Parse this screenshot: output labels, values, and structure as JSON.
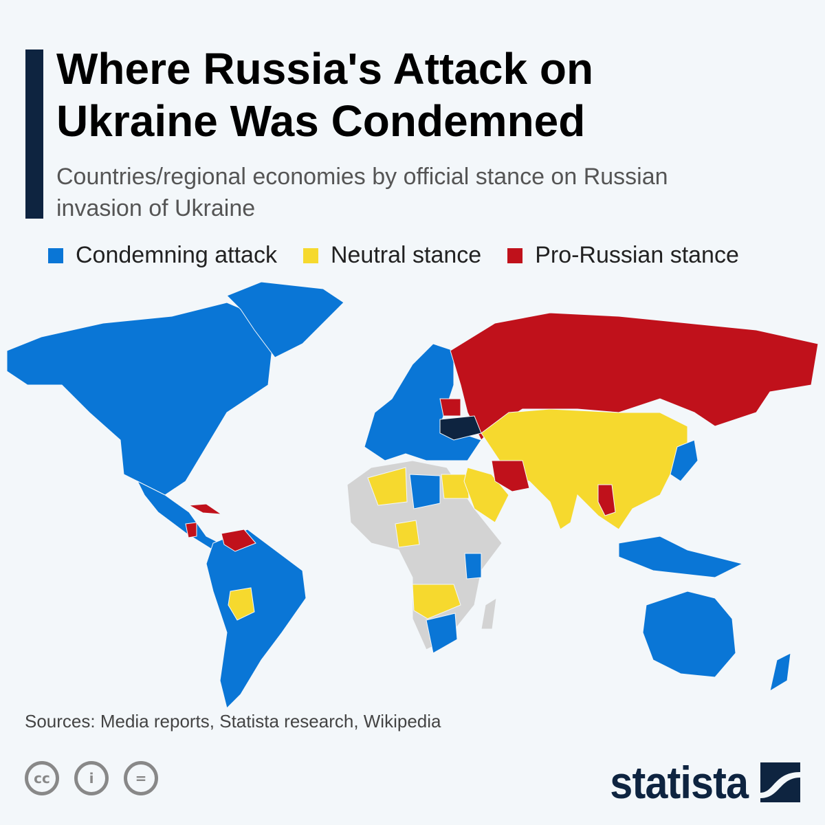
{
  "header": {
    "title": "Where Russia's Attack on Ukraine Was Condemned",
    "subtitle": "Countries/regional economies by official stance on Russian invasion of Ukraine"
  },
  "legend": [
    {
      "label": "Condemning attack",
      "color": "#0a76d6"
    },
    {
      "label": "Neutral stance",
      "color": "#f6d92e"
    },
    {
      "label": "Pro-Russian stance",
      "color": "#c0111b"
    }
  ],
  "map_colors": {
    "no_data": "#d3d3d3",
    "ukraine": "#0e2440"
  },
  "footer": {
    "source": "Sources: Media reports, Statista research, Wikipedia",
    "license_icons": [
      "cc-icon",
      "attribution-icon",
      "no-derivatives-icon"
    ],
    "brand": "statista"
  }
}
